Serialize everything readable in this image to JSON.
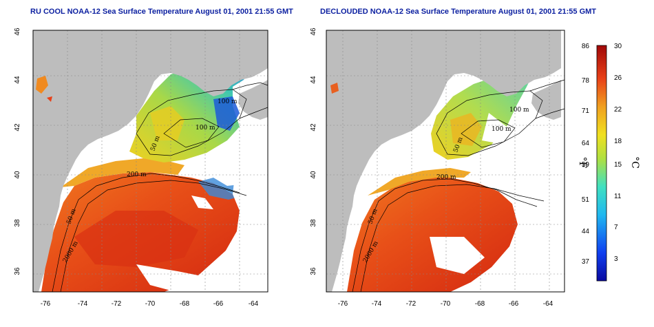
{
  "titles": {
    "left": "RU COOL NOAA-12 Sea Surface Temperature August 01, 2001 21:55 GMT",
    "right": "DECLOUDED NOAA-12 Sea Surface Temperature August 01, 2001 21:55 GMT"
  },
  "axes": {
    "lon_ticks": [
      "-76",
      "-74",
      "-72",
      "-70",
      "-68",
      "-66",
      "-64"
    ],
    "lat_ticks": [
      "46",
      "44",
      "42",
      "40",
      "38",
      "36"
    ]
  },
  "contour_labels": [
    "100 m",
    "200 m",
    "50 m",
    "50 m",
    "100 m",
    "2000 m"
  ],
  "colorbar": {
    "fahrenheit_unit": "°F",
    "celsius_unit": "°C",
    "fahrenheit_ticks": [
      "86",
      "78",
      "71",
      "64",
      "59",
      "51",
      "44",
      "37"
    ],
    "celsius_ticks": [
      "30",
      "26",
      "22",
      "18",
      "15",
      "11",
      "7",
      "3"
    ]
  },
  "colors": {
    "land": "#bdbdbd",
    "cloud": "#ffffff",
    "title": "#0b1fa0",
    "gulf_stream": "#d42a10",
    "shelf_water": "#f07a20",
    "gulf_of_maine": "#8fd05a",
    "cold_coast": "#3a8ad8"
  }
}
